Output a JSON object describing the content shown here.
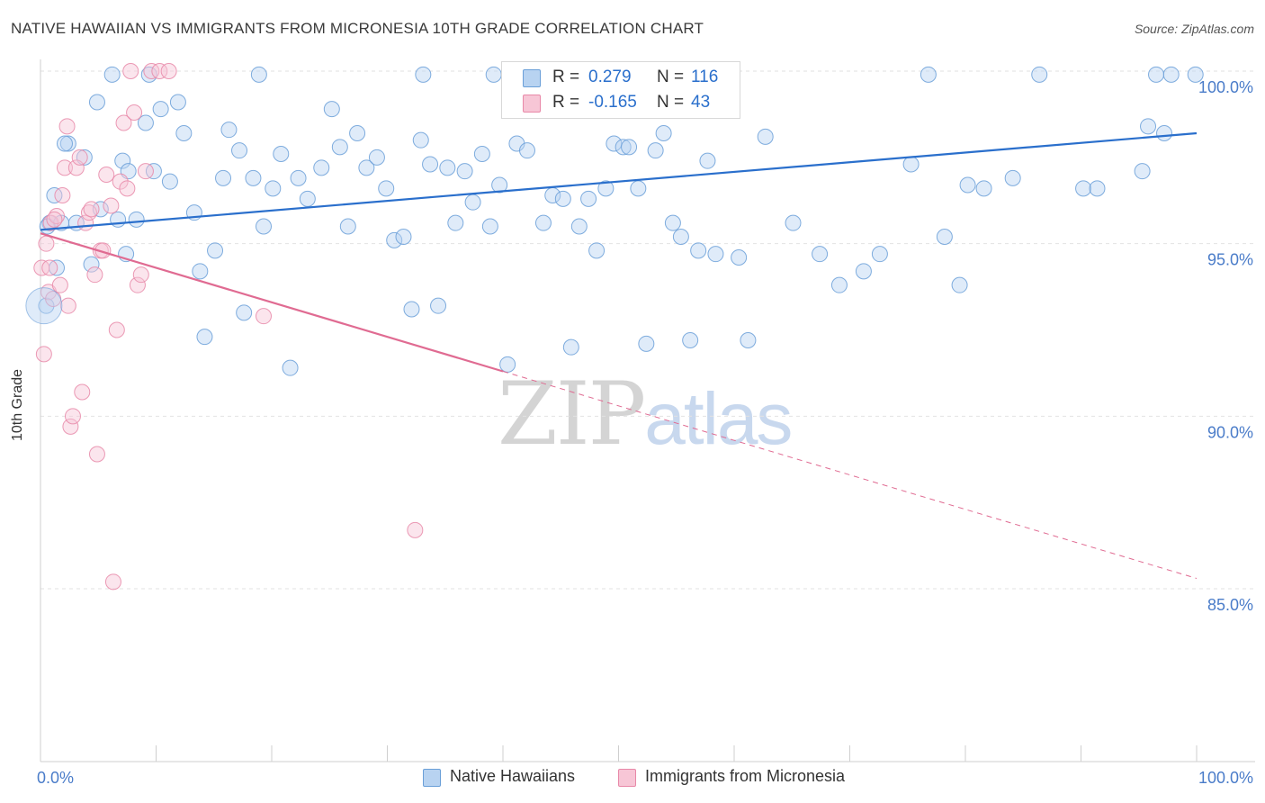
{
  "title": "NATIVE HAWAIIAN VS IMMIGRANTS FROM MICRONESIA 10TH GRADE CORRELATION CHART",
  "source": "Source: ZipAtlas.com",
  "watermark": {
    "zip": "ZIP",
    "atlas": "atlas"
  },
  "legend": {
    "r_label": "R =",
    "n_label": "N =",
    "blue": {
      "r": "0.279",
      "n": "116"
    },
    "pink": {
      "r": "-0.165",
      "n": "43"
    }
  },
  "colors": {
    "blue": "#6a9fd8",
    "blue_fill": "#b8d3f1",
    "blue_line": "#2a6fcc",
    "pink": "#e888a8",
    "pink_fill": "#f7c6d6",
    "pink_line": "#e06b92",
    "axis_text": "#4a7cc9"
  },
  "chart_data": {
    "type": "scatter",
    "title": "NATIVE HAWAIIAN VS IMMIGRANTS FROM MICRONESIA 10TH GRADE CORRELATION CHART",
    "xlabel": "",
    "ylabel": "10th Grade",
    "xlim": [
      0,
      100
    ],
    "ylim": [
      80.5,
      100.5
    ],
    "x_tick_labels": [
      "0.0%",
      "100.0%"
    ],
    "y_ticks": [
      85,
      90,
      95,
      100
    ],
    "y_tick_labels": [
      "85.0%",
      "90.0%",
      "95.0%",
      "100.0%"
    ],
    "grid": true,
    "legend_position": "top-center",
    "series": [
      {
        "name": "Native Hawaiians",
        "color": "#6a9fd8",
        "trend": {
          "x": [
            0,
            100
          ],
          "y": [
            95.4,
            98.2
          ],
          "style": "solid"
        },
        "points": [
          [
            0.5,
            93.2
          ],
          [
            0.8,
            95.6
          ],
          [
            1.2,
            96.4
          ],
          [
            1.8,
            95.6
          ],
          [
            2.4,
            97.9
          ],
          [
            3.1,
            95.6
          ],
          [
            3.8,
            97.5
          ],
          [
            4.4,
            94.4
          ],
          [
            5.2,
            96.0
          ],
          [
            6.7,
            95.7
          ],
          [
            7.1,
            97.4
          ],
          [
            7.4,
            94.7
          ],
          [
            7.6,
            97.1
          ],
          [
            8.3,
            95.7
          ],
          [
            9.1,
            98.5
          ],
          [
            9.8,
            97.1
          ],
          [
            10.4,
            98.9
          ],
          [
            11.2,
            96.8
          ],
          [
            11.9,
            99.1
          ],
          [
            12.4,
            98.2
          ],
          [
            13.3,
            95.9
          ],
          [
            13.8,
            94.2
          ],
          [
            14.2,
            92.3
          ],
          [
            15.1,
            94.8
          ],
          [
            15.8,
            96.9
          ],
          [
            16.3,
            98.3
          ],
          [
            17.2,
            97.7
          ],
          [
            17.6,
            93.0
          ],
          [
            18.4,
            96.9
          ],
          [
            19.3,
            95.5
          ],
          [
            20.1,
            96.6
          ],
          [
            20.8,
            97.6
          ],
          [
            21.6,
            91.4
          ],
          [
            22.3,
            96.9
          ],
          [
            23.1,
            96.3
          ],
          [
            24.3,
            97.2
          ],
          [
            25.2,
            98.9
          ],
          [
            25.9,
            97.8
          ],
          [
            26.6,
            95.5
          ],
          [
            27.4,
            98.2
          ],
          [
            28.2,
            97.2
          ],
          [
            29.1,
            97.5
          ],
          [
            29.9,
            96.6
          ],
          [
            30.6,
            95.1
          ],
          [
            31.4,
            95.2
          ],
          [
            32.1,
            93.1
          ],
          [
            32.9,
            98.0
          ],
          [
            33.7,
            97.3
          ],
          [
            34.4,
            93.2
          ],
          [
            35.2,
            97.2
          ],
          [
            35.9,
            95.6
          ],
          [
            36.7,
            97.1
          ],
          [
            37.4,
            96.2
          ],
          [
            38.2,
            97.6
          ],
          [
            38.9,
            95.5
          ],
          [
            39.7,
            96.7
          ],
          [
            40.4,
            91.5
          ],
          [
            41.2,
            97.9
          ],
          [
            42.1,
            97.7
          ],
          [
            42.8,
            99.0
          ],
          [
            43.5,
            95.6
          ],
          [
            44.3,
            96.4
          ],
          [
            45.2,
            96.3
          ],
          [
            45.9,
            92.0
          ],
          [
            46.6,
            95.5
          ],
          [
            47.4,
            96.3
          ],
          [
            48.1,
            94.8
          ],
          [
            48.9,
            96.6
          ],
          [
            49.6,
            97.9
          ],
          [
            50.4,
            97.8
          ],
          [
            50.9,
            97.8
          ],
          [
            51.7,
            96.6
          ],
          [
            52.4,
            92.1
          ],
          [
            53.2,
            97.7
          ],
          [
            53.9,
            98.2
          ],
          [
            54.7,
            95.6
          ],
          [
            55.4,
            95.2
          ],
          [
            56.2,
            92.2
          ],
          [
            56.9,
            94.8
          ],
          [
            57.7,
            97.4
          ],
          [
            58.4,
            94.7
          ],
          [
            59.6,
            99.9
          ],
          [
            60.4,
            94.6
          ],
          [
            61.2,
            92.2
          ],
          [
            62.7,
            98.1
          ],
          [
            65.1,
            95.6
          ],
          [
            67.4,
            94.7
          ],
          [
            69.1,
            93.8
          ],
          [
            71.2,
            94.2
          ],
          [
            72.6,
            94.7
          ],
          [
            75.3,
            97.3
          ],
          [
            76.8,
            99.9
          ],
          [
            78.2,
            95.2
          ],
          [
            79.5,
            93.8
          ],
          [
            80.2,
            96.7
          ],
          [
            81.6,
            96.6
          ],
          [
            84.1,
            96.9
          ],
          [
            86.4,
            99.9
          ],
          [
            90.2,
            96.6
          ],
          [
            91.4,
            96.6
          ],
          [
            95.3,
            97.1
          ],
          [
            95.8,
            98.4
          ],
          [
            96.5,
            99.9
          ],
          [
            97.2,
            98.2
          ],
          [
            99.9,
            99.9
          ],
          [
            0.6,
            95.5
          ],
          [
            1.4,
            94.3
          ],
          [
            2.1,
            97.9
          ],
          [
            4.9,
            99.1
          ],
          [
            6.2,
            99.9
          ],
          [
            9.4,
            99.9
          ],
          [
            18.9,
            99.9
          ],
          [
            33.1,
            99.9
          ],
          [
            39.2,
            99.9
          ],
          [
            46.1,
            99.9
          ],
          [
            97.8,
            99.9
          ]
        ]
      },
      {
        "name": "Immigrants from Micronesia",
        "color": "#e888a8",
        "trend": {
          "x": [
            0,
            40,
            100
          ],
          "y": [
            95.3,
            91.3,
            85.3
          ],
          "style": "solid-then-dashed",
          "solid_until": 40
        },
        "points": [
          [
            0.1,
            94.3
          ],
          [
            0.3,
            91.8
          ],
          [
            0.5,
            95.0
          ],
          [
            0.7,
            93.6
          ],
          [
            0.9,
            95.6
          ],
          [
            1.1,
            93.4
          ],
          [
            1.4,
            95.8
          ],
          [
            1.7,
            93.8
          ],
          [
            1.9,
            96.4
          ],
          [
            2.1,
            97.2
          ],
          [
            2.3,
            98.4
          ],
          [
            2.6,
            89.7
          ],
          [
            2.8,
            90.0
          ],
          [
            3.1,
            97.2
          ],
          [
            3.4,
            97.5
          ],
          [
            3.6,
            90.7
          ],
          [
            3.9,
            95.6
          ],
          [
            4.2,
            95.9
          ],
          [
            4.4,
            96.0
          ],
          [
            4.7,
            94.1
          ],
          [
            4.9,
            88.9
          ],
          [
            5.2,
            94.8
          ],
          [
            5.4,
            94.8
          ],
          [
            5.7,
            97.0
          ],
          [
            6.1,
            96.1
          ],
          [
            6.3,
            85.2
          ],
          [
            6.6,
            92.5
          ],
          [
            6.9,
            96.8
          ],
          [
            7.2,
            98.5
          ],
          [
            7.5,
            96.6
          ],
          [
            7.8,
            100.0
          ],
          [
            8.1,
            98.8
          ],
          [
            8.4,
            93.8
          ],
          [
            8.7,
            94.1
          ],
          [
            9.1,
            97.1
          ],
          [
            9.6,
            100.0
          ],
          [
            10.3,
            100.0
          ],
          [
            11.1,
            100.0
          ],
          [
            19.3,
            92.9
          ],
          [
            32.4,
            86.7
          ],
          [
            1.2,
            95.7
          ],
          [
            2.4,
            93.2
          ],
          [
            0.8,
            94.3
          ]
        ]
      }
    ]
  }
}
